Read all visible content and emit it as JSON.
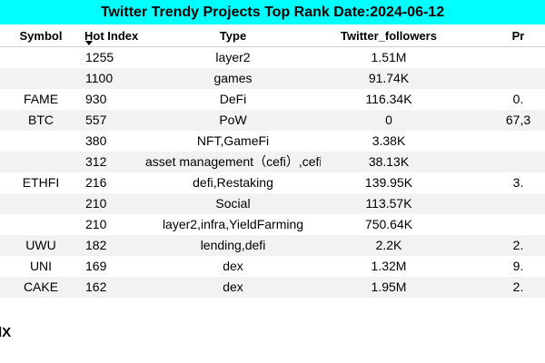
{
  "chart_data": {
    "type": "table",
    "title": "Twitter Trendy Projects Top Rank Date:2024-06-12",
    "columns": [
      "",
      "Symbol",
      "Hot Index",
      "Type",
      "Twitter_followers",
      "Pr"
    ],
    "sort_column": "Hot Index",
    "rows": [
      [
        "",
        "",
        "1255",
        "layer2",
        "1.51M",
        ""
      ],
      [
        "",
        "",
        "1100",
        "games",
        "91.74K",
        ""
      ],
      [
        "",
        "FAME",
        "930",
        "DeFi",
        "116.34K",
        "0."
      ],
      [
        "",
        "BTC",
        "557",
        "PoW",
        "0",
        "67,3"
      ],
      [
        "",
        "",
        "380",
        "NFT,GameFi",
        "3.38K",
        ""
      ],
      [
        "",
        "",
        "312",
        "asset management（cefi）,cefi",
        "38.13K",
        ""
      ],
      [
        "",
        "ETHFI",
        "216",
        "defi,Restaking",
        "139.95K",
        "3."
      ],
      [
        "",
        "",
        "210",
        "Social",
        "113.57K",
        ""
      ],
      [
        "",
        "",
        "210",
        "layer2,infra,YieldFarming",
        "750.64K",
        ""
      ],
      [
        "",
        "UWU",
        "182",
        "lending,defi",
        "2.2K",
        "2."
      ],
      [
        "",
        "UNI",
        "169",
        "dex",
        "1.32M",
        "9."
      ],
      [
        "",
        "CAKE",
        "162",
        "dex",
        "1.95M",
        "2."
      ]
    ]
  },
  "watermark": "dX",
  "colors": {
    "title_background": "#00ffff",
    "stripe": "#f2f2f2",
    "text": "#000000"
  }
}
